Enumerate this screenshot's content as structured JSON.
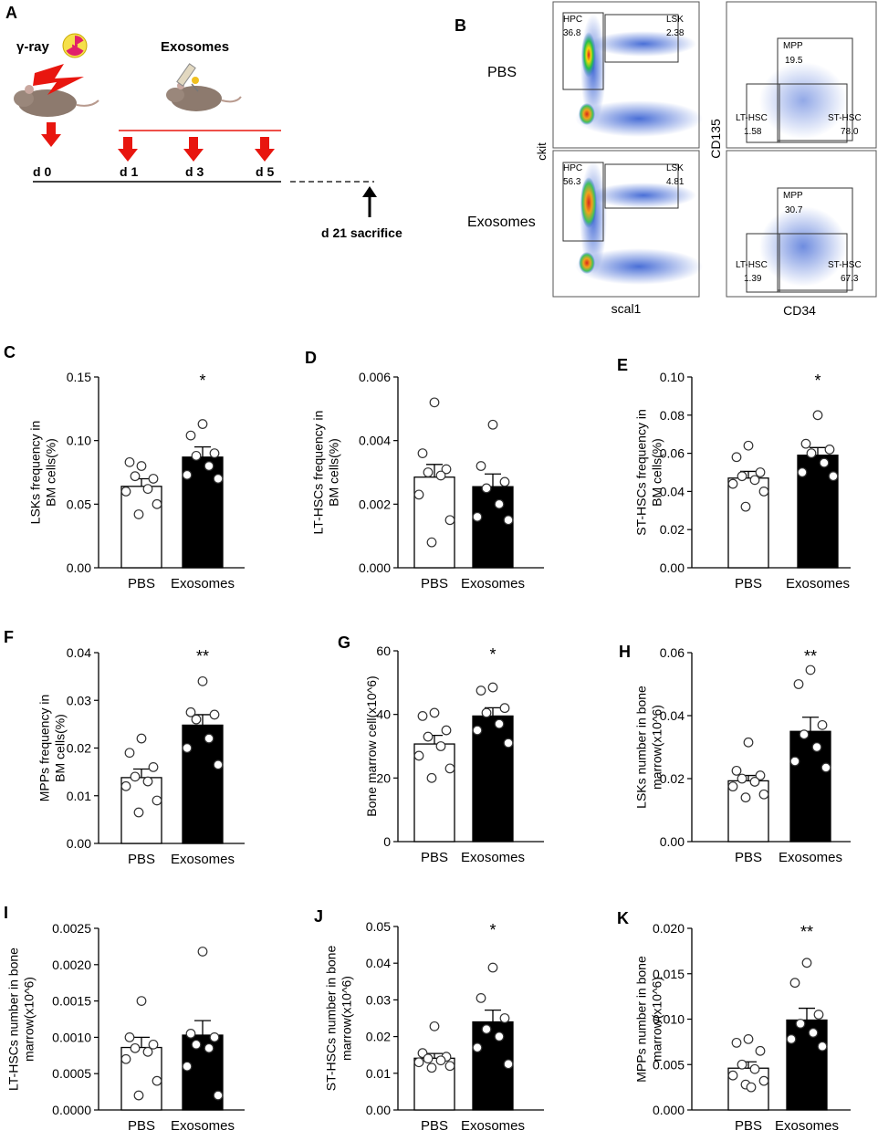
{
  "panel_a": {
    "letter": "A",
    "gamma_label": "γ-ray",
    "exosomes_label": "Exosomes",
    "days": [
      "d 0",
      "d 1",
      "d 3",
      "d 5"
    ],
    "sacrifice_label": "d 21 sacrifice",
    "colors": {
      "arrow": "#e8160f",
      "line": "#e8160f"
    }
  },
  "panel_b": {
    "letter": "B",
    "row_labels": [
      "PBS",
      "Exosomes"
    ],
    "axis_ckit": "ckit",
    "axis_scal1": "scal1",
    "axis_cd135": "CD135",
    "axis_cd34": "CD34",
    "plots": [
      {
        "gate1_name": "HPC",
        "gate1_value": "36.8",
        "gate2_name": "LSK",
        "gate2_value": "2.38"
      },
      {
        "gate1_name": "HPC",
        "gate1_value": "56.3",
        "gate2_name": "LSK",
        "gate2_value": "4.81"
      },
      {
        "gate1_name": "MPP",
        "gate1_value": "19.5",
        "gate2_name": "LT-HSC",
        "gate2_value": "1.58",
        "gate3_name": "ST-HSC",
        "gate3_value": "78.0"
      },
      {
        "gate1_name": "MPP",
        "gate1_value": "30.7",
        "gate2_name": "LT-HSC",
        "gate2_value": "1.39",
        "gate3_name": "ST-HSC",
        "gate3_value": "67.3"
      }
    ]
  },
  "chart_data": [
    {
      "type": "bar",
      "letter": "C",
      "ylabel": [
        "LSKs frequency in",
        "BM cells(%)"
      ],
      "categories": [
        "PBS",
        "Exosomes"
      ],
      "ylim": [
        0,
        0.15
      ],
      "ticks": [
        "0.00",
        "0.05",
        "0.10",
        "0.15"
      ],
      "means": [
        0.064,
        0.087
      ],
      "sem": [
        0.006,
        0.008
      ],
      "sig": "*",
      "points": [
        [
          0.08,
          0.083,
          0.07,
          0.072,
          0.062,
          0.06,
          0.05,
          0.042
        ],
        [
          0.113,
          0.104,
          0.09,
          0.088,
          0.08,
          0.073,
          0.07
        ]
      ]
    },
    {
      "type": "bar",
      "letter": "D",
      "ylabel": [
        "LT-HSCs frequency in",
        "BM cells(%)"
      ],
      "categories": [
        "PBS",
        "Exosomes"
      ],
      "ylim": [
        0,
        0.006
      ],
      "ticks": [
        "0.000",
        "0.002",
        "0.004",
        "0.006"
      ],
      "means": [
        0.00285,
        0.00255
      ],
      "sem": [
        0.0004,
        0.0004
      ],
      "sig": "",
      "points": [
        [
          0.0052,
          0.0036,
          0.0031,
          0.003,
          0.0029,
          0.0023,
          0.0015,
          0.0008
        ],
        [
          0.0045,
          0.0032,
          0.0027,
          0.0025,
          0.002,
          0.0016,
          0.0015
        ]
      ]
    },
    {
      "type": "bar",
      "letter": "E",
      "ylabel": [
        "ST-HSCs frequency in",
        "BM cells(%)"
      ],
      "categories": [
        "PBS",
        "Exosomes"
      ],
      "ylim": [
        0,
        0.1
      ],
      "ticks": [
        "0.00",
        "0.02",
        "0.04",
        "0.06",
        "0.08",
        "0.10"
      ],
      "means": [
        0.047,
        0.059
      ],
      "sem": [
        0.0035,
        0.004
      ],
      "sig": "*",
      "points": [
        [
          0.064,
          0.058,
          0.05,
          0.048,
          0.046,
          0.044,
          0.04,
          0.032
        ],
        [
          0.08,
          0.065,
          0.062,
          0.06,
          0.055,
          0.05,
          0.048
        ]
      ]
    },
    {
      "type": "bar",
      "letter": "F",
      "ylabel": [
        "MPPs frequency in",
        "BM cells(%)"
      ],
      "categories": [
        "PBS",
        "Exosomes"
      ],
      "ylim": [
        0,
        0.04
      ],
      "ticks": [
        "0.00",
        "0.01",
        "0.02",
        "0.03",
        "0.04"
      ],
      "means": [
        0.0138,
        0.0248
      ],
      "sem": [
        0.0018,
        0.0022
      ],
      "sig": "**",
      "points": [
        [
          0.022,
          0.019,
          0.016,
          0.014,
          0.013,
          0.012,
          0.009,
          0.0065
        ],
        [
          0.034,
          0.0275,
          0.027,
          0.026,
          0.022,
          0.02,
          0.0165
        ]
      ]
    },
    {
      "type": "bar",
      "letter": "G",
      "ylabel": [
        "Bone marrow cell(x10^6)"
      ],
      "categories": [
        "PBS",
        "Exosomes"
      ],
      "ylim": [
        0,
        60
      ],
      "ticks": [
        "0",
        "20",
        "40",
        "60"
      ],
      "means": [
        30.7,
        39.5
      ],
      "sem": [
        2.7,
        2.6
      ],
      "sig": "*",
      "points": [
        [
          40.5,
          39.5,
          35,
          33,
          30,
          27,
          23,
          20
        ],
        [
          48.5,
          47.5,
          42,
          40.5,
          37,
          35,
          31
        ]
      ]
    },
    {
      "type": "bar",
      "letter": "H",
      "ylabel": [
        "LSKs number in bone",
        "marrow(x10^6)"
      ],
      "categories": [
        "PBS",
        "Exosomes"
      ],
      "ylim": [
        0,
        0.06
      ],
      "ticks": [
        "0.00",
        "0.02",
        "0.04",
        "0.06"
      ],
      "means": [
        0.0193,
        0.035
      ],
      "sem": [
        0.0017,
        0.0045
      ],
      "sig": "**",
      "points": [
        [
          0.0315,
          0.0225,
          0.021,
          0.02,
          0.019,
          0.0175,
          0.015,
          0.014
        ],
        [
          0.0545,
          0.05,
          0.037,
          0.034,
          0.03,
          0.0255,
          0.0235
        ]
      ]
    },
    {
      "type": "bar",
      "letter": "I",
      "ylabel": [
        "LT-HSCs number in bone",
        "marrow(x10^6)"
      ],
      "categories": [
        "PBS",
        "Exosomes"
      ],
      "ylim": [
        0,
        0.0025
      ],
      "ticks": [
        "0.0000",
        "0.0005",
        "0.0010",
        "0.0015",
        "0.0020",
        "0.0025"
      ],
      "means": [
        0.00086,
        0.00103
      ],
      "sem": [
        0.00014,
        0.0002
      ],
      "sig": "",
      "points": [
        [
          0.0015,
          0.001,
          0.0009,
          0.00085,
          0.0008,
          0.0007,
          0.0004,
          0.0002
        ],
        [
          0.00218,
          0.00105,
          0.001,
          0.0009,
          0.00085,
          0.0006,
          0.0002
        ]
      ]
    },
    {
      "type": "bar",
      "letter": "J",
      "ylabel": [
        "ST-HSCs number in bone",
        "marrow(x10^6)"
      ],
      "categories": [
        "PBS",
        "Exosomes"
      ],
      "ylim": [
        0,
        0.05
      ],
      "ticks": [
        "0.00",
        "0.01",
        "0.02",
        "0.03",
        "0.04",
        "0.05"
      ],
      "means": [
        0.0141,
        0.024
      ],
      "sem": [
        0.0013,
        0.0032
      ],
      "sig": "*",
      "points": [
        [
          0.0228,
          0.0155,
          0.0145,
          0.014,
          0.0135,
          0.013,
          0.012,
          0.0115
        ],
        [
          0.0388,
          0.0305,
          0.025,
          0.022,
          0.02,
          0.017,
          0.0125
        ]
      ]
    },
    {
      "type": "bar",
      "letter": "K",
      "ylabel": [
        "MPPs number in bone",
        "marrow(x10^6)"
      ],
      "categories": [
        "PBS",
        "Exosomes"
      ],
      "ylim": [
        0,
        0.02
      ],
      "ticks": [
        "0.000",
        "0.005",
        "0.010",
        "0.015",
        "0.020"
      ],
      "means": [
        0.0046,
        0.0099
      ],
      "sem": [
        0.0007,
        0.0013
      ],
      "sig": "**",
      "points": [
        [
          0.0078,
          0.0074,
          0.0065,
          0.005,
          0.0045,
          0.0038,
          0.0032,
          0.0028,
          0.0025
        ],
        [
          0.0162,
          0.014,
          0.0105,
          0.0095,
          0.0085,
          0.0078,
          0.007
        ]
      ]
    }
  ]
}
